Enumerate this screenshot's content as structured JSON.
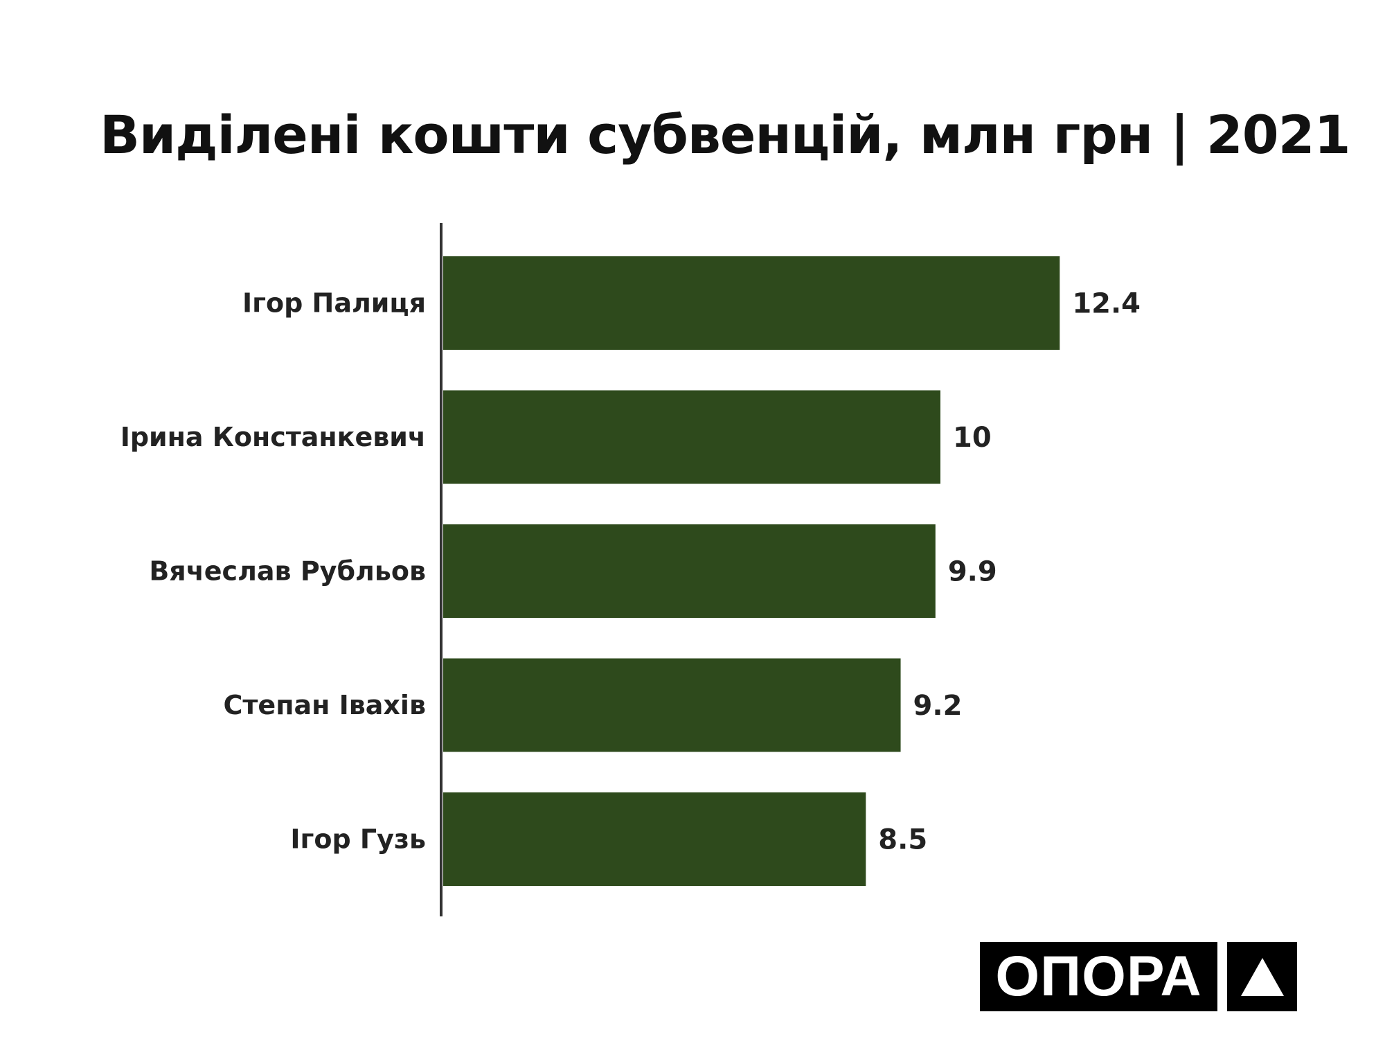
{
  "chart_data": {
    "type": "bar",
    "orientation": "horizontal",
    "title": "Виділені кошти субвенцій, млн грн | 2021",
    "categories": [
      "Ігор Палиця",
      "Ірина Констанкевич",
      "Вячеслав Рубльов",
      "Степан Івахів",
      "Ігор Гузь"
    ],
    "values": [
      12.4,
      10,
      9.9,
      9.2,
      8.5
    ],
    "value_labels": [
      "12.4",
      "10",
      "9.9",
      "9.2",
      "8.5"
    ],
    "xlabel": "",
    "ylabel": "",
    "xlim": [
      0,
      14
    ],
    "grid": false,
    "bar_color": "#2e4a1c"
  },
  "logo": {
    "text": "ОПОРА",
    "icon": "triangle-icon"
  }
}
